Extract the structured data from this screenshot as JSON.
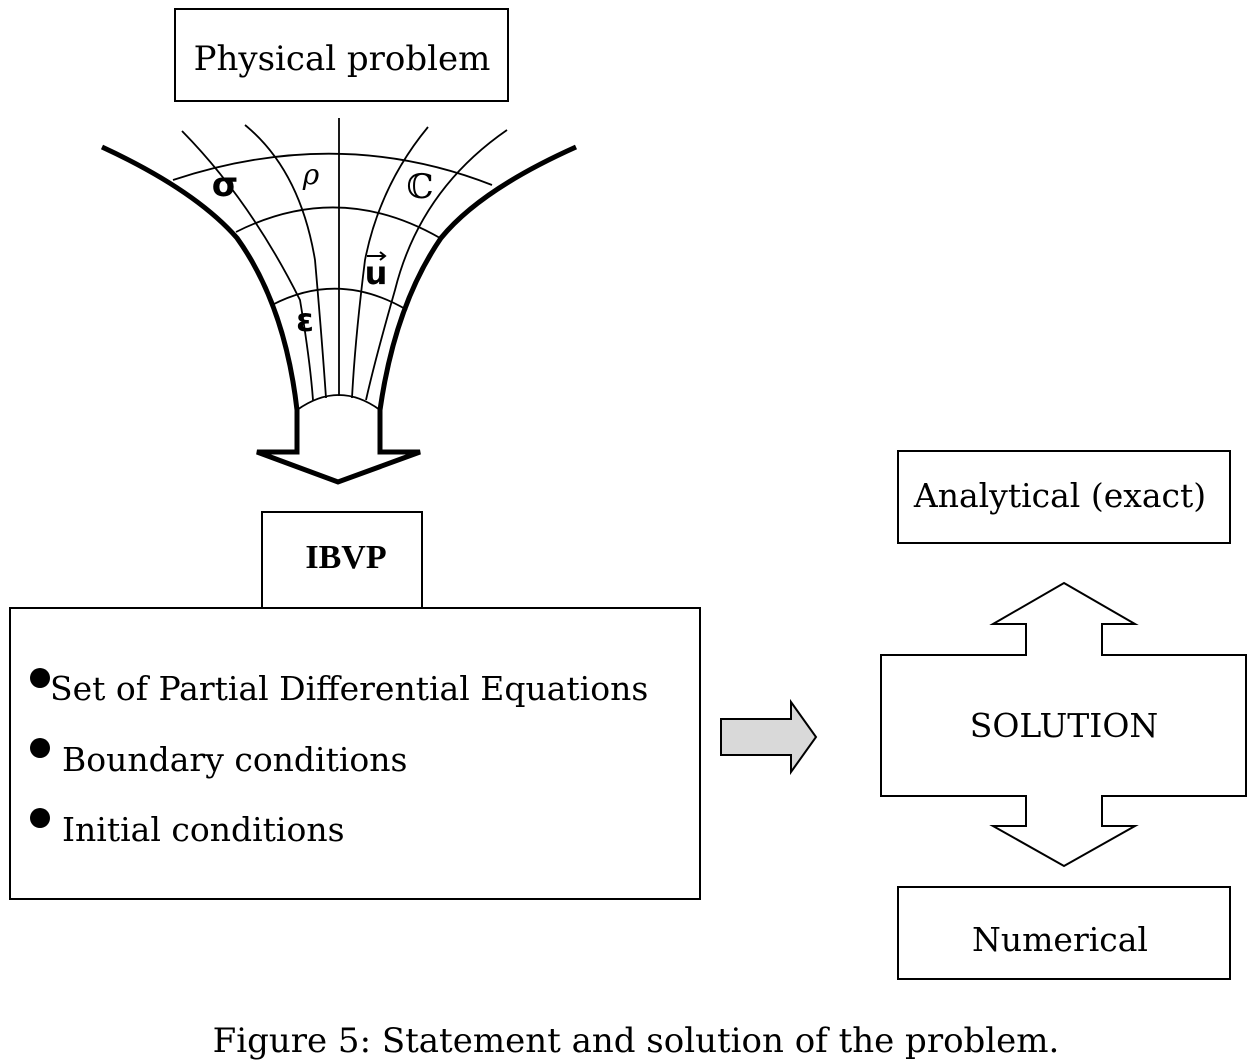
{
  "top_box": {
    "label": "Physical problem"
  },
  "funnel": {
    "symbols": {
      "sigma": "σ",
      "rho": "ρ",
      "stiffness": "ℂ",
      "displacement": "u",
      "displacement_arrow": "⃗",
      "strain": "ε"
    }
  },
  "ibvp": {
    "label": "IBVP",
    "items": [
      "Set of Partial Differential Equations",
      "Boundary conditions",
      "Initial conditions"
    ]
  },
  "solution": {
    "label": "SOLUTION",
    "analytical": "Analytical (exact)",
    "numerical": "Numerical"
  },
  "caption": "Figure 5: Statement and solution of the problem."
}
